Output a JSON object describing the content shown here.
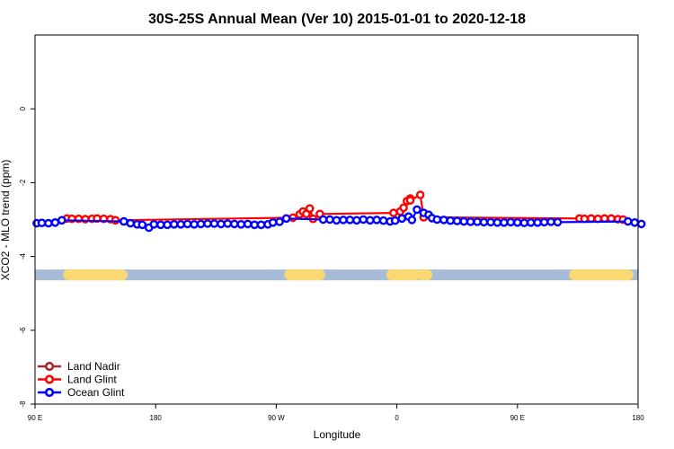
{
  "chart_data": {
    "type": "line",
    "title": "30S-25S Annual Mean (Ver 10)   2015-01-01 to 2020-12-18",
    "xlabel": "Longitude",
    "ylabel": "XCO2 - MLO trend (ppm)",
    "xlim": [
      90,
      450
    ],
    "ylim": [
      -8,
      2
    ],
    "x_ticks": [
      {
        "value": 90,
        "label": "90 E"
      },
      {
        "value": 162,
        "label": "180"
      },
      {
        "value": 234,
        "label": "90 W"
      },
      {
        "value": 306,
        "label": "0"
      },
      {
        "value": 378,
        "label": "90 E"
      },
      {
        "value": 450,
        "label": "180"
      }
    ],
    "y_ticks": [
      {
        "value": -8,
        "label": "-8"
      },
      {
        "value": -6,
        "label": "-6"
      },
      {
        "value": -4,
        "label": "-4"
      },
      {
        "value": -2,
        "label": "-2"
      },
      {
        "value": 0,
        "label": "0"
      }
    ],
    "grid": false,
    "legend_position": "bottom-left",
    "surface_band": {
      "y": -4.5,
      "ocean_color": "#a8bcd8",
      "land_color": "#fcd873",
      "land_segments": [
        [
          110,
          142
        ],
        [
          242,
          260
        ],
        [
          303,
          317
        ],
        [
          321,
          324
        ],
        [
          412,
          444
        ]
      ]
    },
    "series": [
      {
        "name": "Land Nadir",
        "color": "#a52a2a",
        "points": []
      },
      {
        "name": "Land Glint",
        "color": "#ff0000",
        "points": [
          [
            109,
            -2.97
          ],
          [
            112,
            -2.98
          ],
          [
            116,
            -2.98
          ],
          [
            120,
            -2.99
          ],
          [
            124,
            -2.98
          ],
          [
            127,
            -2.97
          ],
          [
            131,
            -2.98
          ],
          [
            135,
            -2.99
          ],
          [
            138,
            -3.02
          ],
          [
            244,
            -2.95
          ],
          [
            248,
            -2.86
          ],
          [
            250,
            -2.78
          ],
          [
            252,
            -2.85
          ],
          [
            254,
            -2.7
          ],
          [
            256,
            -2.98
          ],
          [
            260,
            -2.85
          ],
          [
            304,
            -2.82
          ],
          [
            308,
            -2.78
          ],
          [
            310,
            -2.68
          ],
          [
            312,
            -2.5
          ],
          [
            314,
            -2.43
          ],
          [
            314,
            -2.48
          ],
          [
            320,
            -2.33
          ],
          [
            322,
            -2.94
          ],
          [
            415,
            -2.97
          ],
          [
            418,
            -2.98
          ],
          [
            422,
            -2.97
          ],
          [
            426,
            -2.98
          ],
          [
            430,
            -2.97
          ],
          [
            434,
            -2.97
          ],
          [
            438,
            -2.99
          ],
          [
            441,
            -3.0
          ]
        ]
      },
      {
        "name": "Ocean Glint",
        "color": "#0000ff",
        "points": [
          [
            91,
            -3.1
          ],
          [
            94,
            -3.09
          ],
          [
            98,
            -3.1
          ],
          [
            102,
            -3.08
          ],
          [
            106,
            -3.02
          ],
          [
            143,
            -3.05
          ],
          [
            147,
            -3.1
          ],
          [
            151,
            -3.13
          ],
          [
            154,
            -3.14
          ],
          [
            158,
            -3.22
          ],
          [
            161,
            -3.13
          ],
          [
            165,
            -3.14
          ],
          [
            169,
            -3.14
          ],
          [
            173,
            -3.13
          ],
          [
            177,
            -3.13
          ],
          [
            181,
            -3.12
          ],
          [
            185,
            -3.13
          ],
          [
            189,
            -3.12
          ],
          [
            193,
            -3.11
          ],
          [
            197,
            -3.11
          ],
          [
            201,
            -3.12
          ],
          [
            205,
            -3.11
          ],
          [
            209,
            -3.12
          ],
          [
            213,
            -3.13
          ],
          [
            217,
            -3.12
          ],
          [
            221,
            -3.14
          ],
          [
            225,
            -3.14
          ],
          [
            229,
            -3.13
          ],
          [
            232,
            -3.08
          ],
          [
            236,
            -3.06
          ],
          [
            240,
            -2.97
          ],
          [
            262,
            -3.0
          ],
          [
            266,
            -3.0
          ],
          [
            270,
            -3.02
          ],
          [
            274,
            -3.01
          ],
          [
            278,
            -3.01
          ],
          [
            282,
            -3.02
          ],
          [
            286,
            -3.0
          ],
          [
            290,
            -3.02
          ],
          [
            294,
            -3.01
          ],
          [
            298,
            -3.03
          ],
          [
            302,
            -3.05
          ],
          [
            305,
            -3.03
          ],
          [
            309,
            -2.97
          ],
          [
            313,
            -2.92
          ],
          [
            315,
            -3.01
          ],
          [
            318,
            -2.73
          ],
          [
            322,
            -2.82
          ],
          [
            325,
            -2.87
          ],
          [
            327,
            -2.96
          ],
          [
            330,
            -3.0
          ],
          [
            334,
            -3.01
          ],
          [
            338,
            -3.03
          ],
          [
            342,
            -3.04
          ],
          [
            346,
            -3.05
          ],
          [
            350,
            -3.06
          ],
          [
            354,
            -3.06
          ],
          [
            358,
            -3.07
          ],
          [
            362,
            -3.07
          ],
          [
            366,
            -3.08
          ],
          [
            370,
            -3.08
          ],
          [
            374,
            -3.07
          ],
          [
            378,
            -3.08
          ],
          [
            382,
            -3.09
          ],
          [
            386,
            -3.08
          ],
          [
            390,
            -3.08
          ],
          [
            394,
            -3.07
          ],
          [
            398,
            -3.06
          ],
          [
            402,
            -3.07
          ],
          [
            444,
            -3.05
          ],
          [
            448,
            -3.08
          ],
          [
            452,
            -3.12
          ]
        ]
      }
    ]
  }
}
